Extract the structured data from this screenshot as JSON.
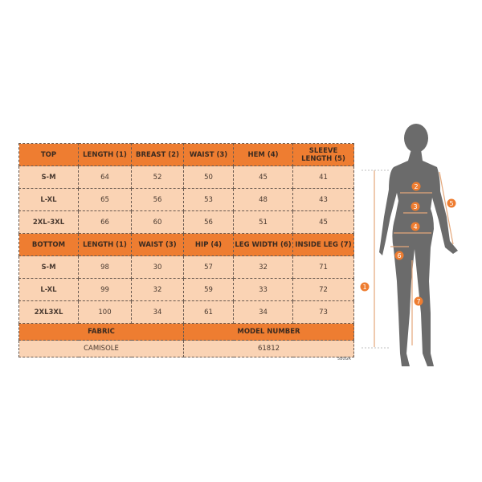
{
  "top": {
    "headers": [
      "TOP",
      "LENGTH (1)",
      "BREAST (2)",
      "WAIST (3)",
      "HEM (4)",
      "SLEEVE LENGTH (5)"
    ],
    "rows": [
      [
        "S-M",
        "64",
        "52",
        "50",
        "45",
        "41"
      ],
      [
        "L-XL",
        "65",
        "56",
        "53",
        "48",
        "43"
      ],
      [
        "2XL-3XL",
        "66",
        "60",
        "56",
        "51",
        "45"
      ]
    ]
  },
  "bottom": {
    "headers": [
      "BOTTOM",
      "LENGTH (1)",
      "WAIST (3)",
      "HIP (4)",
      "LEG WIDTH (6)",
      "INSIDE LEG (7)"
    ],
    "rows": [
      [
        "S-M",
        "98",
        "30",
        "57",
        "32",
        "71"
      ],
      [
        "L-XL",
        "99",
        "32",
        "59",
        "33",
        "72"
      ],
      [
        "2XL3XL",
        "100",
        "34",
        "61",
        "34",
        "73"
      ]
    ]
  },
  "footer": {
    "fabric_label": "FABRIC",
    "model_label": "MODEL NUMBER",
    "fabric": "CAMISOLE",
    "model_number": "61812"
  },
  "code": "580GR",
  "diagram": {
    "markers": [
      "1",
      "2",
      "3",
      "4",
      "5",
      "6",
      "7"
    ]
  },
  "colors": {
    "header": "#ee7d31",
    "cell": "#fad3b4",
    "silhouette": "#6b6b6b",
    "measure": "#e4a77a"
  }
}
